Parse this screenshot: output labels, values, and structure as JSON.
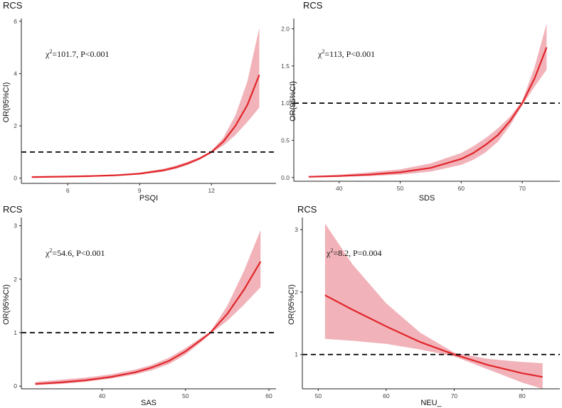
{
  "chart_data": [
    {
      "type": "line",
      "panel_label": "RCS",
      "xlabel": "PSQI",
      "ylabel": "OR(95%CI)",
      "chi_symbol": "χ",
      "chi_sup": "2",
      "chi_text": "=101.7, P<0.001",
      "xlim": [
        4.3,
        14.4
      ],
      "ylim": [
        -0.2,
        6
      ],
      "xticks": [
        6,
        9,
        12
      ],
      "yticks": [
        0,
        2,
        4,
        6
      ],
      "reference_line": 1,
      "series": [
        {
          "name": "OR",
          "x": [
            4.5,
            6,
            7,
            8,
            9,
            10,
            10.5,
            11,
            11.5,
            12,
            12.5,
            13,
            13.5,
            14
          ],
          "y": [
            0.04,
            0.06,
            0.08,
            0.11,
            0.17,
            0.3,
            0.41,
            0.56,
            0.75,
            1.0,
            1.4,
            2.0,
            2.8,
            3.95
          ],
          "lower": [
            0.02,
            0.04,
            0.06,
            0.09,
            0.14,
            0.25,
            0.35,
            0.5,
            0.7,
            0.96,
            1.25,
            1.65,
            2.15,
            2.7
          ],
          "upper": [
            0.08,
            0.09,
            0.11,
            0.14,
            0.21,
            0.36,
            0.48,
            0.63,
            0.8,
            1.04,
            1.55,
            2.4,
            3.7,
            5.75
          ]
        }
      ],
      "colors": {
        "line": "#e1262b",
        "band": "#eea0a7",
        "reference": "#000000"
      }
    },
    {
      "type": "line",
      "panel_label": "RCS",
      "xlabel": "SDS",
      "ylabel": "OR(95%CI)",
      "chi_symbol": "χ",
      "chi_sup": "2",
      "chi_text": "=113, P<0.001",
      "xlim": [
        33.5,
        75
      ],
      "ylim": [
        -0.05,
        2.1
      ],
      "xticks": [
        40,
        50,
        60,
        70
      ],
      "yticks": [
        0.0,
        0.5,
        1.0,
        1.5,
        2.0
      ],
      "ytick_labels": [
        "0.0",
        "0.5",
        "1.0",
        "1.5",
        "2.0"
      ],
      "reference_line": 1,
      "series": [
        {
          "name": "OR",
          "x": [
            35,
            40,
            45,
            50,
            55,
            60,
            62,
            64,
            66,
            68,
            70,
            72,
            74
          ],
          "y": [
            0.01,
            0.02,
            0.04,
            0.07,
            0.13,
            0.25,
            0.33,
            0.44,
            0.57,
            0.76,
            1.0,
            1.33,
            1.75
          ],
          "lower": [
            0.0,
            0.01,
            0.02,
            0.04,
            0.08,
            0.17,
            0.24,
            0.34,
            0.48,
            0.7,
            0.97,
            1.22,
            1.45
          ],
          "upper": [
            0.02,
            0.04,
            0.07,
            0.11,
            0.19,
            0.33,
            0.42,
            0.53,
            0.66,
            0.82,
            1.03,
            1.48,
            2.07
          ]
        }
      ],
      "colors": {
        "line": "#e1262b",
        "band": "#eea0a7",
        "reference": "#000000"
      }
    },
    {
      "type": "line",
      "panel_label": "RCS",
      "xlabel": "SAS",
      "ylabel": "OR(95%CI)",
      "chi_symbol": "χ",
      "chi_sup": "2",
      "chi_text": "=54.6, P<0.001",
      "xlim": [
        31,
        60
      ],
      "ylim": [
        -0.05,
        3.1
      ],
      "xticks": [
        40,
        50,
        60
      ],
      "yticks": [
        0,
        1,
        2,
        3
      ],
      "reference_line": 1,
      "series": [
        {
          "name": "OR",
          "x": [
            32,
            35,
            38,
            41,
            44,
            46,
            48,
            50,
            52,
            53,
            55,
            57,
            59
          ],
          "y": [
            0.04,
            0.07,
            0.11,
            0.17,
            0.26,
            0.35,
            0.47,
            0.65,
            0.88,
            1.0,
            1.35,
            1.8,
            2.33
          ],
          "lower": [
            0.02,
            0.04,
            0.08,
            0.14,
            0.22,
            0.3,
            0.41,
            0.59,
            0.84,
            0.98,
            1.22,
            1.52,
            1.85
          ],
          "upper": [
            0.08,
            0.12,
            0.16,
            0.22,
            0.31,
            0.4,
            0.53,
            0.71,
            0.92,
            1.02,
            1.5,
            2.15,
            2.92
          ]
        }
      ],
      "colors": {
        "line": "#e1262b",
        "band": "#eea0a7",
        "reference": "#000000"
      }
    },
    {
      "type": "line",
      "panel_label": "RCS",
      "xlabel": "NEU_",
      "ylabel": "OR(95%CI)",
      "chi_symbol": "χ",
      "chi_sup": "2",
      "chi_text": "=8.2, P=0.004",
      "xlim": [
        48.5,
        84.5
      ],
      "ylim": [
        0.45,
        3.15
      ],
      "xticks": [
        50,
        60,
        70,
        80
      ],
      "yticks": [
        1,
        2,
        3
      ],
      "reference_line": 1,
      "series": [
        {
          "name": "OR",
          "x": [
            51,
            55,
            60,
            65,
            70,
            75,
            80,
            83
          ],
          "y": [
            1.95,
            1.72,
            1.45,
            1.2,
            1.0,
            0.83,
            0.7,
            0.64
          ],
          "lower": [
            1.25,
            1.22,
            1.17,
            1.08,
            0.97,
            0.76,
            0.55,
            0.45
          ],
          "upper": [
            3.1,
            2.45,
            1.82,
            1.35,
            1.03,
            0.93,
            0.88,
            0.86
          ]
        }
      ],
      "colors": {
        "line": "#e1262b",
        "band": "#eea0a7",
        "reference": "#000000"
      }
    }
  ]
}
